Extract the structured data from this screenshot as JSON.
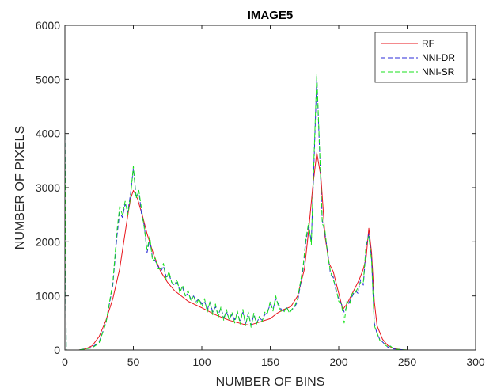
{
  "chart_data": {
    "type": "line",
    "title": "IMAGE5",
    "xlabel": "NUMBER OF BINS",
    "ylabel": "NUMBER OF PIXELS",
    "xlim": [
      0,
      300
    ],
    "ylim": [
      0,
      6000
    ],
    "xticks": [
      0,
      50,
      100,
      150,
      200,
      250,
      300
    ],
    "yticks": [
      0,
      1000,
      2000,
      3000,
      4000,
      5000,
      6000
    ],
    "xtick_labels": [
      "0",
      "50",
      "100",
      "150",
      "200",
      "250",
      "300"
    ],
    "ytick_labels": [
      "0",
      "1000",
      "2000",
      "3000",
      "4000",
      "5000",
      "6000"
    ],
    "grid": false,
    "legend_position": "top-right",
    "series": [
      {
        "name": "RF",
        "color": "#e8141b",
        "dash": "solid",
        "points": [
          [
            10,
            0
          ],
          [
            15,
            20
          ],
          [
            20,
            80
          ],
          [
            25,
            250
          ],
          [
            30,
            550
          ],
          [
            35,
            950
          ],
          [
            40,
            1500
          ],
          [
            43,
            2000
          ],
          [
            46,
            2500
          ],
          [
            48,
            2800
          ],
          [
            50,
            2950
          ],
          [
            53,
            2800
          ],
          [
            57,
            2450
          ],
          [
            60,
            2150
          ],
          [
            65,
            1750
          ],
          [
            70,
            1450
          ],
          [
            75,
            1250
          ],
          [
            80,
            1100
          ],
          [
            90,
            900
          ],
          [
            100,
            780
          ],
          [
            110,
            650
          ],
          [
            120,
            550
          ],
          [
            130,
            480
          ],
          [
            135,
            460
          ],
          [
            140,
            500
          ],
          [
            150,
            580
          ],
          [
            155,
            680
          ],
          [
            160,
            750
          ],
          [
            165,
            800
          ],
          [
            170,
            1000
          ],
          [
            175,
            1500
          ],
          [
            178,
            2200
          ],
          [
            181,
            3000
          ],
          [
            184,
            3650
          ],
          [
            187,
            3200
          ],
          [
            190,
            2100
          ],
          [
            193,
            1600
          ],
          [
            196,
            1450
          ],
          [
            200,
            1050
          ],
          [
            203,
            750
          ],
          [
            206,
            850
          ],
          [
            210,
            1050
          ],
          [
            215,
            1300
          ],
          [
            218,
            1500
          ],
          [
            220,
            1700
          ],
          [
            222,
            2250
          ],
          [
            224,
            1800
          ],
          [
            226,
            900
          ],
          [
            228,
            450
          ],
          [
            232,
            200
          ],
          [
            236,
            80
          ],
          [
            240,
            30
          ],
          [
            245,
            10
          ],
          [
            250,
            0
          ]
        ]
      },
      {
        "name": "NNI-DR",
        "color": "#2b2bd9",
        "dash": "dashed",
        "points": [
          [
            0,
            4100
          ],
          [
            1,
            0
          ],
          [
            10,
            0
          ],
          [
            20,
            50
          ],
          [
            25,
            150
          ],
          [
            30,
            500
          ],
          [
            35,
            1200
          ],
          [
            38,
            2100
          ],
          [
            40,
            2550
          ],
          [
            42,
            2450
          ],
          [
            44,
            2700
          ],
          [
            46,
            2550
          ],
          [
            48,
            2900
          ],
          [
            50,
            3350
          ],
          [
            52,
            2850
          ],
          [
            54,
            2950
          ],
          [
            56,
            2500
          ],
          [
            58,
            2300
          ],
          [
            60,
            1800
          ],
          [
            62,
            2050
          ],
          [
            64,
            1700
          ],
          [
            66,
            1650
          ],
          [
            68,
            1550
          ],
          [
            70,
            1450
          ],
          [
            72,
            1550
          ],
          [
            74,
            1350
          ],
          [
            76,
            1400
          ],
          [
            78,
            1250
          ],
          [
            80,
            1200
          ],
          [
            82,
            1250
          ],
          [
            84,
            1100
          ],
          [
            86,
            1150
          ],
          [
            88,
            1000
          ],
          [
            90,
            1050
          ],
          [
            92,
            950
          ],
          [
            94,
            1000
          ],
          [
            96,
            900
          ],
          [
            98,
            950
          ],
          [
            100,
            850
          ],
          [
            102,
            900
          ],
          [
            104,
            750
          ],
          [
            106,
            880
          ],
          [
            108,
            700
          ],
          [
            110,
            800
          ],
          [
            112,
            650
          ],
          [
            114,
            780
          ],
          [
            116,
            600
          ],
          [
            118,
            700
          ],
          [
            120,
            580
          ],
          [
            122,
            650
          ],
          [
            124,
            560
          ],
          [
            126,
            690
          ],
          [
            128,
            520
          ],
          [
            130,
            700
          ],
          [
            132,
            480
          ],
          [
            134,
            680
          ],
          [
            136,
            450
          ],
          [
            138,
            650
          ],
          [
            140,
            500
          ],
          [
            142,
            600
          ],
          [
            144,
            550
          ],
          [
            146,
            650
          ],
          [
            148,
            700
          ],
          [
            150,
            850
          ],
          [
            152,
            750
          ],
          [
            154,
            950
          ],
          [
            156,
            850
          ],
          [
            158,
            750
          ],
          [
            160,
            720
          ],
          [
            162,
            780
          ],
          [
            164,
            700
          ],
          [
            166,
            750
          ],
          [
            168,
            800
          ],
          [
            170,
            900
          ],
          [
            172,
            1200
          ],
          [
            174,
            1500
          ],
          [
            176,
            2000
          ],
          [
            178,
            2300
          ],
          [
            180,
            2000
          ],
          [
            182,
            3500
          ],
          [
            184,
            5050
          ],
          [
            186,
            3700
          ],
          [
            188,
            2400
          ],
          [
            190,
            2150
          ],
          [
            192,
            1800
          ],
          [
            194,
            1400
          ],
          [
            196,
            1350
          ],
          [
            198,
            1100
          ],
          [
            200,
            950
          ],
          [
            202,
            850
          ],
          [
            204,
            700
          ],
          [
            206,
            800
          ],
          [
            208,
            900
          ],
          [
            210,
            1000
          ],
          [
            212,
            1100
          ],
          [
            214,
            1050
          ],
          [
            216,
            1300
          ],
          [
            218,
            1200
          ],
          [
            220,
            1900
          ],
          [
            222,
            2150
          ],
          [
            224,
            1700
          ],
          [
            226,
            500
          ],
          [
            228,
            300
          ],
          [
            230,
            200
          ],
          [
            232,
            150
          ],
          [
            234,
            100
          ],
          [
            236,
            50
          ],
          [
            238,
            80
          ],
          [
            240,
            20
          ],
          [
            245,
            10
          ],
          [
            250,
            0
          ]
        ]
      },
      {
        "name": "NNI-SR",
        "color": "#19e21d",
        "dash": "dashed",
        "points": [
          [
            0,
            4100
          ],
          [
            1,
            0
          ],
          [
            10,
            0
          ],
          [
            20,
            40
          ],
          [
            25,
            130
          ],
          [
            30,
            500
          ],
          [
            35,
            1250
          ],
          [
            38,
            2200
          ],
          [
            40,
            2650
          ],
          [
            42,
            2500
          ],
          [
            44,
            2750
          ],
          [
            46,
            2500
          ],
          [
            48,
            2850
          ],
          [
            50,
            3400
          ],
          [
            52,
            2800
          ],
          [
            54,
            2950
          ],
          [
            56,
            2600
          ],
          [
            58,
            2250
          ],
          [
            60,
            1850
          ],
          [
            62,
            2100
          ],
          [
            64,
            1650
          ],
          [
            66,
            1700
          ],
          [
            68,
            1500
          ],
          [
            70,
            1500
          ],
          [
            72,
            1600
          ],
          [
            74,
            1300
          ],
          [
            76,
            1450
          ],
          [
            78,
            1250
          ],
          [
            80,
            1200
          ],
          [
            82,
            1300
          ],
          [
            84,
            1050
          ],
          [
            86,
            1200
          ],
          [
            88,
            1000
          ],
          [
            90,
            1100
          ],
          [
            92,
            900
          ],
          [
            94,
            1000
          ],
          [
            96,
            850
          ],
          [
            98,
            950
          ],
          [
            100,
            800
          ],
          [
            102,
            950
          ],
          [
            104,
            700
          ],
          [
            106,
            900
          ],
          [
            108,
            650
          ],
          [
            110,
            850
          ],
          [
            112,
            600
          ],
          [
            114,
            800
          ],
          [
            116,
            550
          ],
          [
            118,
            750
          ],
          [
            120,
            550
          ],
          [
            122,
            700
          ],
          [
            124,
            500
          ],
          [
            126,
            720
          ],
          [
            128,
            480
          ],
          [
            130,
            750
          ],
          [
            132,
            450
          ],
          [
            134,
            700
          ],
          [
            136,
            420
          ],
          [
            138,
            680
          ],
          [
            140,
            480
          ],
          [
            142,
            620
          ],
          [
            144,
            520
          ],
          [
            146,
            700
          ],
          [
            148,
            680
          ],
          [
            150,
            900
          ],
          [
            152,
            720
          ],
          [
            154,
            1000
          ],
          [
            156,
            800
          ],
          [
            158,
            720
          ],
          [
            160,
            700
          ],
          [
            162,
            800
          ],
          [
            164,
            680
          ],
          [
            166,
            760
          ],
          [
            168,
            820
          ],
          [
            170,
            950
          ],
          [
            172,
            1250
          ],
          [
            174,
            1550
          ],
          [
            176,
            2050
          ],
          [
            178,
            2350
          ],
          [
            180,
            1950
          ],
          [
            182,
            3600
          ],
          [
            184,
            5100
          ],
          [
            186,
            3750
          ],
          [
            188,
            2350
          ],
          [
            190,
            2200
          ],
          [
            192,
            1750
          ],
          [
            194,
            1450
          ],
          [
            196,
            1300
          ],
          [
            198,
            1150
          ],
          [
            200,
            900
          ],
          [
            202,
            850
          ],
          [
            204,
            500
          ],
          [
            206,
            900
          ],
          [
            208,
            850
          ],
          [
            210,
            1050
          ],
          [
            212,
            1050
          ],
          [
            214,
            1150
          ],
          [
            216,
            1250
          ],
          [
            218,
            1250
          ],
          [
            220,
            1950
          ],
          [
            222,
            2100
          ],
          [
            224,
            1650
          ],
          [
            226,
            450
          ],
          [
            228,
            320
          ],
          [
            230,
            180
          ],
          [
            232,
            160
          ],
          [
            234,
            90
          ],
          [
            236,
            60
          ],
          [
            238,
            70
          ],
          [
            240,
            20
          ],
          [
            245,
            10
          ],
          [
            250,
            0
          ]
        ]
      }
    ]
  }
}
